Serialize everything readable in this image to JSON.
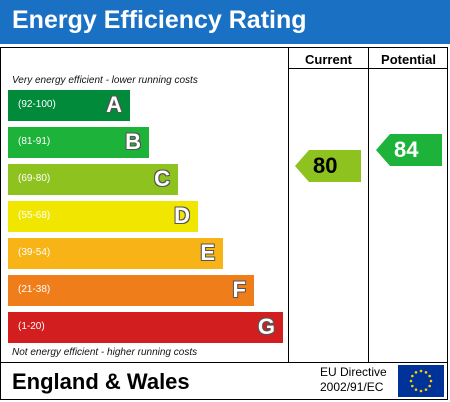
{
  "title": "Energy Efficiency Rating",
  "columns": {
    "current": "Current",
    "potential": "Potential"
  },
  "notes": {
    "top": "Very energy efficient - lower running costs",
    "bottom": "Not energy efficient - higher running costs"
  },
  "bands": [
    {
      "range": "(92-100)",
      "letter": "A",
      "color": "#008a3a"
    },
    {
      "range": "(81-91)",
      "letter": "B",
      "color": "#1db33a"
    },
    {
      "range": "(69-80)",
      "letter": "C",
      "color": "#8dc21f"
    },
    {
      "range": "(55-68)",
      "letter": "D",
      "color": "#f0e600"
    },
    {
      "range": "(39-54)",
      "letter": "E",
      "color": "#f8b416"
    },
    {
      "range": "(21-38)",
      "letter": "F",
      "color": "#ef7d1a"
    },
    {
      "range": "(1-20)",
      "letter": "G",
      "color": "#d21e1e"
    }
  ],
  "current": {
    "value": "80",
    "color": "#8dc21f"
  },
  "potential": {
    "value": "84",
    "color": "#1db33a"
  },
  "footer": {
    "region": "England & Wales",
    "directive_line1": "EU Directive",
    "directive_line2": "2002/91/EC"
  },
  "flag_icon": "eu-flag-icon"
}
